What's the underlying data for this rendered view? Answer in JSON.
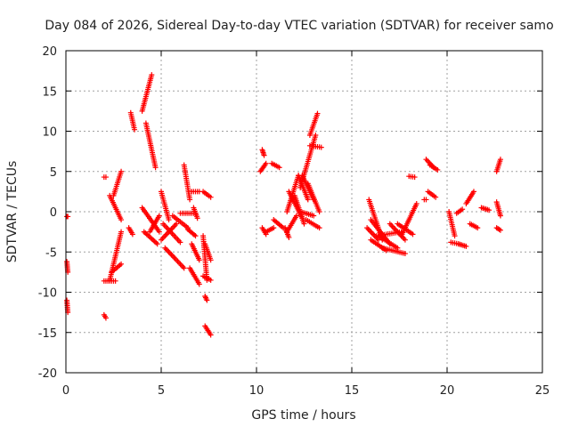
{
  "chart_data": {
    "type": "scatter",
    "title": "Day 084 of 2026, Sidereal Day-to-day VTEC variation (SDTVAR) for receiver samo",
    "xlabel": "GPS time / hours",
    "ylabel": "SDTVAR / TECUs",
    "xlim": [
      0,
      25
    ],
    "ylim": [
      -20,
      20
    ],
    "xticks": [
      0,
      5,
      10,
      15,
      20,
      25
    ],
    "yticks": [
      -20,
      -15,
      -10,
      -5,
      0,
      5,
      10,
      15,
      20
    ],
    "grid": true,
    "marker": "+",
    "color": "#ff0000",
    "tracks": [
      {
        "x0": 0.05,
        "x1": 0.1,
        "y0": -0.6,
        "y1": -0.6
      },
      {
        "x0": 0.05,
        "x1": 0.1,
        "y0": -6.2,
        "y1": -7.5
      },
      {
        "x0": 0.05,
        "x1": 0.1,
        "y0": -11.0,
        "y1": -12.5
      },
      {
        "x0": 2.0,
        "x1": 2.1,
        "y0": 4.3,
        "y1": 4.3
      },
      {
        "x0": 2.0,
        "x1": 2.1,
        "y0": -12.8,
        "y1": -13.2
      },
      {
        "x0": 2.0,
        "x1": 2.6,
        "y0": -8.6,
        "y1": -8.6
      },
      {
        "x0": 2.3,
        "x1": 2.9,
        "y0": -8.5,
        "y1": -2.5
      },
      {
        "x0": 2.4,
        "x1": 2.9,
        "y0": -7.5,
        "y1": -6.5
      },
      {
        "x0": 2.3,
        "x1": 2.9,
        "y0": 2.0,
        "y1": -1.0
      },
      {
        "x0": 2.5,
        "x1": 2.9,
        "y0": 2.0,
        "y1": 5.0
      },
      {
        "x0": 3.4,
        "x1": 3.6,
        "y0": 12.3,
        "y1": 10.2
      },
      {
        "x0": 3.3,
        "x1": 3.5,
        "y0": -2.0,
        "y1": -2.8
      },
      {
        "x0": 4.0,
        "x1": 4.5,
        "y0": 12.5,
        "y1": 17.0
      },
      {
        "x0": 4.2,
        "x1": 4.7,
        "y0": 11.0,
        "y1": 5.5
      },
      {
        "x0": 4.0,
        "x1": 4.9,
        "y0": 0.5,
        "y1": -2.5
      },
      {
        "x0": 4.1,
        "x1": 4.8,
        "y0": -2.5,
        "y1": -4.0
      },
      {
        "x0": 4.4,
        "x1": 4.9,
        "y0": -2.5,
        "y1": -0.5
      },
      {
        "x0": 5.0,
        "x1": 5.4,
        "y0": 2.5,
        "y1": -1.0
      },
      {
        "x0": 5.0,
        "x1": 5.8,
        "y0": -3.5,
        "y1": -1.5
      },
      {
        "x0": 5.1,
        "x1": 6.0,
        "y0": -1.5,
        "y1": -3.8
      },
      {
        "x0": 5.2,
        "x1": 6.2,
        "y0": -4.5,
        "y1": -7.0
      },
      {
        "x0": 5.6,
        "x1": 6.4,
        "y0": -0.5,
        "y1": -2.0
      },
      {
        "x0": 6.2,
        "x1": 6.5,
        "y0": 5.8,
        "y1": 1.5
      },
      {
        "x0": 6.0,
        "x1": 6.8,
        "y0": -0.2,
        "y1": -0.2
      },
      {
        "x0": 6.7,
        "x1": 6.9,
        "y0": 0.5,
        "y1": -0.8
      },
      {
        "x0": 6.4,
        "x1": 6.8,
        "y0": -2.2,
        "y1": -3.0
      },
      {
        "x0": 6.6,
        "x1": 7.0,
        "y0": -4.0,
        "y1": -6.0
      },
      {
        "x0": 6.5,
        "x1": 7.0,
        "y0": -7.0,
        "y1": -9.0
      },
      {
        "x0": 6.6,
        "x1": 7.0,
        "y0": 2.5,
        "y1": 2.5
      },
      {
        "x0": 7.2,
        "x1": 7.4,
        "y0": -3.0,
        "y1": -8.5
      },
      {
        "x0": 7.2,
        "x1": 7.6,
        "y0": 2.5,
        "y1": 1.8
      },
      {
        "x0": 7.3,
        "x1": 7.6,
        "y0": -4.0,
        "y1": -6.0
      },
      {
        "x0": 7.2,
        "x1": 7.6,
        "y0": -8.0,
        "y1": -8.5
      },
      {
        "x0": 7.3,
        "x1": 7.4,
        "y0": -10.5,
        "y1": -11.0
      },
      {
        "x0": 7.3,
        "x1": 7.6,
        "y0": -14.2,
        "y1": -15.3
      },
      {
        "x0": 10.3,
        "x1": 10.4,
        "y0": 7.7,
        "y1": 7.0
      },
      {
        "x0": 10.2,
        "x1": 10.5,
        "y0": 5.0,
        "y1": 6.0
      },
      {
        "x0": 10.3,
        "x1": 10.5,
        "y0": -2.0,
        "y1": -2.8
      },
      {
        "x0": 10.5,
        "x1": 10.9,
        "y0": -2.5,
        "y1": -2.0
      },
      {
        "x0": 10.8,
        "x1": 11.2,
        "y0": 6.0,
        "y1": 5.5
      },
      {
        "x0": 10.9,
        "x1": 11.4,
        "y0": -1.0,
        "y1": -2.0
      },
      {
        "x0": 11.5,
        "x1": 11.7,
        "y0": -2.0,
        "y1": -3.2
      },
      {
        "x0": 11.6,
        "x1": 12.1,
        "y0": -2.5,
        "y1": -0.5
      },
      {
        "x0": 11.6,
        "x1": 12.2,
        "y0": 0.0,
        "y1": 4.5
      },
      {
        "x0": 11.7,
        "x1": 12.4,
        "y0": 2.5,
        "y1": -0.8
      },
      {
        "x0": 12.0,
        "x1": 12.5,
        "y0": 2.0,
        "y1": -1.5
      },
      {
        "x0": 12.2,
        "x1": 12.7,
        "y0": 4.5,
        "y1": 1.5
      },
      {
        "x0": 12.4,
        "x1": 13.0,
        "y0": 4.5,
        "y1": 1.5
      },
      {
        "x0": 12.7,
        "x1": 13.3,
        "y0": 3.5,
        "y1": 0.0
      },
      {
        "x0": 12.3,
        "x1": 13.0,
        "y0": 0.0,
        "y1": -0.5
      },
      {
        "x0": 12.6,
        "x1": 13.3,
        "y0": -1.0,
        "y1": -2.0
      },
      {
        "x0": 12.3,
        "x1": 13.1,
        "y0": 3.0,
        "y1": 9.5
      },
      {
        "x0": 12.8,
        "x1": 13.2,
        "y0": 9.5,
        "y1": 12.2
      },
      {
        "x0": 12.8,
        "x1": 13.4,
        "y0": 8.2,
        "y1": 8.0
      },
      {
        "x0": 15.9,
        "x1": 16.6,
        "y0": 1.5,
        "y1": -3.5
      },
      {
        "x0": 16.0,
        "x1": 17.0,
        "y0": -1.0,
        "y1": -4.0
      },
      {
        "x0": 15.8,
        "x1": 16.4,
        "y0": -2.0,
        "y1": -3.5
      },
      {
        "x0": 16.0,
        "x1": 16.8,
        "y0": -3.5,
        "y1": -4.8
      },
      {
        "x0": 16.4,
        "x1": 17.4,
        "y0": -3.0,
        "y1": -4.5
      },
      {
        "x0": 16.6,
        "x1": 17.8,
        "y0": -4.5,
        "y1": -5.2
      },
      {
        "x0": 16.3,
        "x1": 17.6,
        "y0": -3.0,
        "y1": -2.5
      },
      {
        "x0": 17.0,
        "x1": 17.8,
        "y0": -1.5,
        "y1": -3.5
      },
      {
        "x0": 17.6,
        "x1": 18.4,
        "y0": -3.0,
        "y1": 1.0
      },
      {
        "x0": 17.4,
        "x1": 18.2,
        "y0": -1.5,
        "y1": -2.8
      },
      {
        "x0": 18.0,
        "x1": 18.3,
        "y0": 4.4,
        "y1": 4.3
      },
      {
        "x0": 18.8,
        "x1": 18.9,
        "y0": 1.5,
        "y1": 1.5
      },
      {
        "x0": 18.9,
        "x1": 19.3,
        "y0": 6.5,
        "y1": 5.5
      },
      {
        "x0": 19.1,
        "x1": 19.5,
        "y0": 5.8,
        "y1": 5.2
      },
      {
        "x0": 19.0,
        "x1": 19.4,
        "y0": 2.5,
        "y1": 1.8
      },
      {
        "x0": 20.1,
        "x1": 20.4,
        "y0": 0.0,
        "y1": -3.0
      },
      {
        "x0": 20.2,
        "x1": 20.6,
        "y0": -3.8,
        "y1": -4.0
      },
      {
        "x0": 20.5,
        "x1": 20.8,
        "y0": -0.2,
        "y1": 0.3
      },
      {
        "x0": 20.6,
        "x1": 21.0,
        "y0": -4.0,
        "y1": -4.3
      },
      {
        "x0": 21.0,
        "x1": 21.4,
        "y0": 1.0,
        "y1": 2.5
      },
      {
        "x0": 21.2,
        "x1": 21.6,
        "y0": -1.5,
        "y1": -2.0
      },
      {
        "x0": 21.8,
        "x1": 22.2,
        "y0": 0.5,
        "y1": 0.2
      },
      {
        "x0": 22.6,
        "x1": 22.8,
        "y0": 5.0,
        "y1": 6.5
      },
      {
        "x0": 22.6,
        "x1": 22.8,
        "y0": 1.2,
        "y1": -0.5
      },
      {
        "x0": 22.6,
        "x1": 22.8,
        "y0": -2.0,
        "y1": -2.3
      }
    ]
  }
}
